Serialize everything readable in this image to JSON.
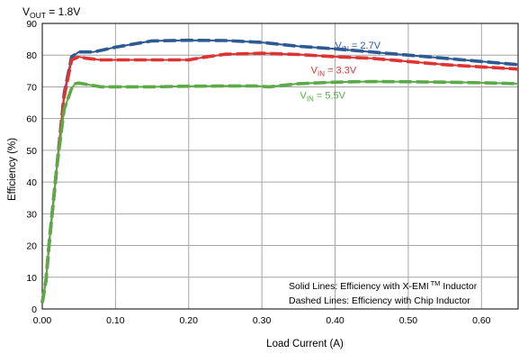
{
  "chart_data": {
    "type": "line",
    "title_main": "V",
    "title_sub": "OUT",
    "title_rest": " = 1.8V",
    "xlabel": "Load Current (A)",
    "ylabel": "Efficiency (%)",
    "xlim": [
      0,
      0.65
    ],
    "ylim": [
      0,
      90
    ],
    "x_ticks": [
      "0.00",
      "0.10",
      "0.20",
      "0.30",
      "0.40",
      "0.50",
      "0.60"
    ],
    "x_tick_values": [
      0,
      0.1,
      0.2,
      0.3,
      0.4,
      0.5,
      0.6
    ],
    "y_ticks": [
      "0",
      "10",
      "20",
      "30",
      "40",
      "50",
      "60",
      "70",
      "80",
      "90"
    ],
    "y_tick_values": [
      0,
      10,
      20,
      30,
      40,
      50,
      60,
      70,
      80,
      90
    ],
    "grid": true,
    "line_styles": [
      "solid",
      "dashed"
    ],
    "series": [
      {
        "label_main": "V",
        "label_sub": "IN",
        "label_rest": " = 2.7V",
        "color": "#2e5a93",
        "label_pos": [
          0.4,
          82
        ],
        "x": [
          0,
          0.005,
          0.01,
          0.02,
          0.03,
          0.04,
          0.05,
          0.07,
          0.1,
          0.15,
          0.2,
          0.25,
          0.3,
          0.35,
          0.4,
          0.45,
          0.5,
          0.55,
          0.6,
          0.65
        ],
        "y": [
          2,
          9,
          22,
          45,
          68,
          79.5,
          81,
          81,
          82.5,
          84.5,
          84.7,
          84.6,
          84,
          82.8,
          82,
          81,
          80,
          79,
          78,
          77
        ]
      },
      {
        "label_main": "V",
        "label_sub": "IN",
        "label_rest": " = 3.3V",
        "color": "#dd3333",
        "label_pos": [
          0.367,
          74.3
        ],
        "x": [
          0,
          0.005,
          0.01,
          0.02,
          0.03,
          0.04,
          0.05,
          0.06,
          0.08,
          0.1,
          0.15,
          0.2,
          0.22,
          0.25,
          0.3,
          0.35,
          0.4,
          0.45,
          0.5,
          0.55,
          0.6,
          0.65
        ],
        "y": [
          2,
          9,
          22,
          45,
          67,
          78.5,
          79.5,
          79,
          78.5,
          78.5,
          78.5,
          78.5,
          79.3,
          80.3,
          80.6,
          80.2,
          79.5,
          79,
          78,
          77,
          76.3,
          75.6
        ]
      },
      {
        "label_main": "V",
        "label_sub": "IN",
        "label_rest": " = 5.5V",
        "color": "#5aab46",
        "label_pos": [
          0.352,
          66.3
        ],
        "x": [
          0,
          0.005,
          0.01,
          0.02,
          0.03,
          0.04,
          0.045,
          0.05,
          0.06,
          0.08,
          0.1,
          0.15,
          0.2,
          0.25,
          0.29,
          0.31,
          0.35,
          0.4,
          0.45,
          0.5,
          0.55,
          0.6,
          0.65
        ],
        "y": [
          2,
          9,
          22,
          45,
          63,
          69.5,
          71,
          71.2,
          70.8,
          70,
          70,
          70,
          70.2,
          70.3,
          70.3,
          70,
          71,
          71.5,
          71.7,
          71.6,
          71.5,
          71.3,
          71
        ]
      }
    ],
    "annotation_line1_main": "Solid Lines: Efficiency with X-EMI",
    "annotation_line1_tm": " TM",
    "annotation_line1_rest": " Inductor",
    "annotation_line2": "Dashed Lines: Efficiency with Chip Inductor"
  }
}
